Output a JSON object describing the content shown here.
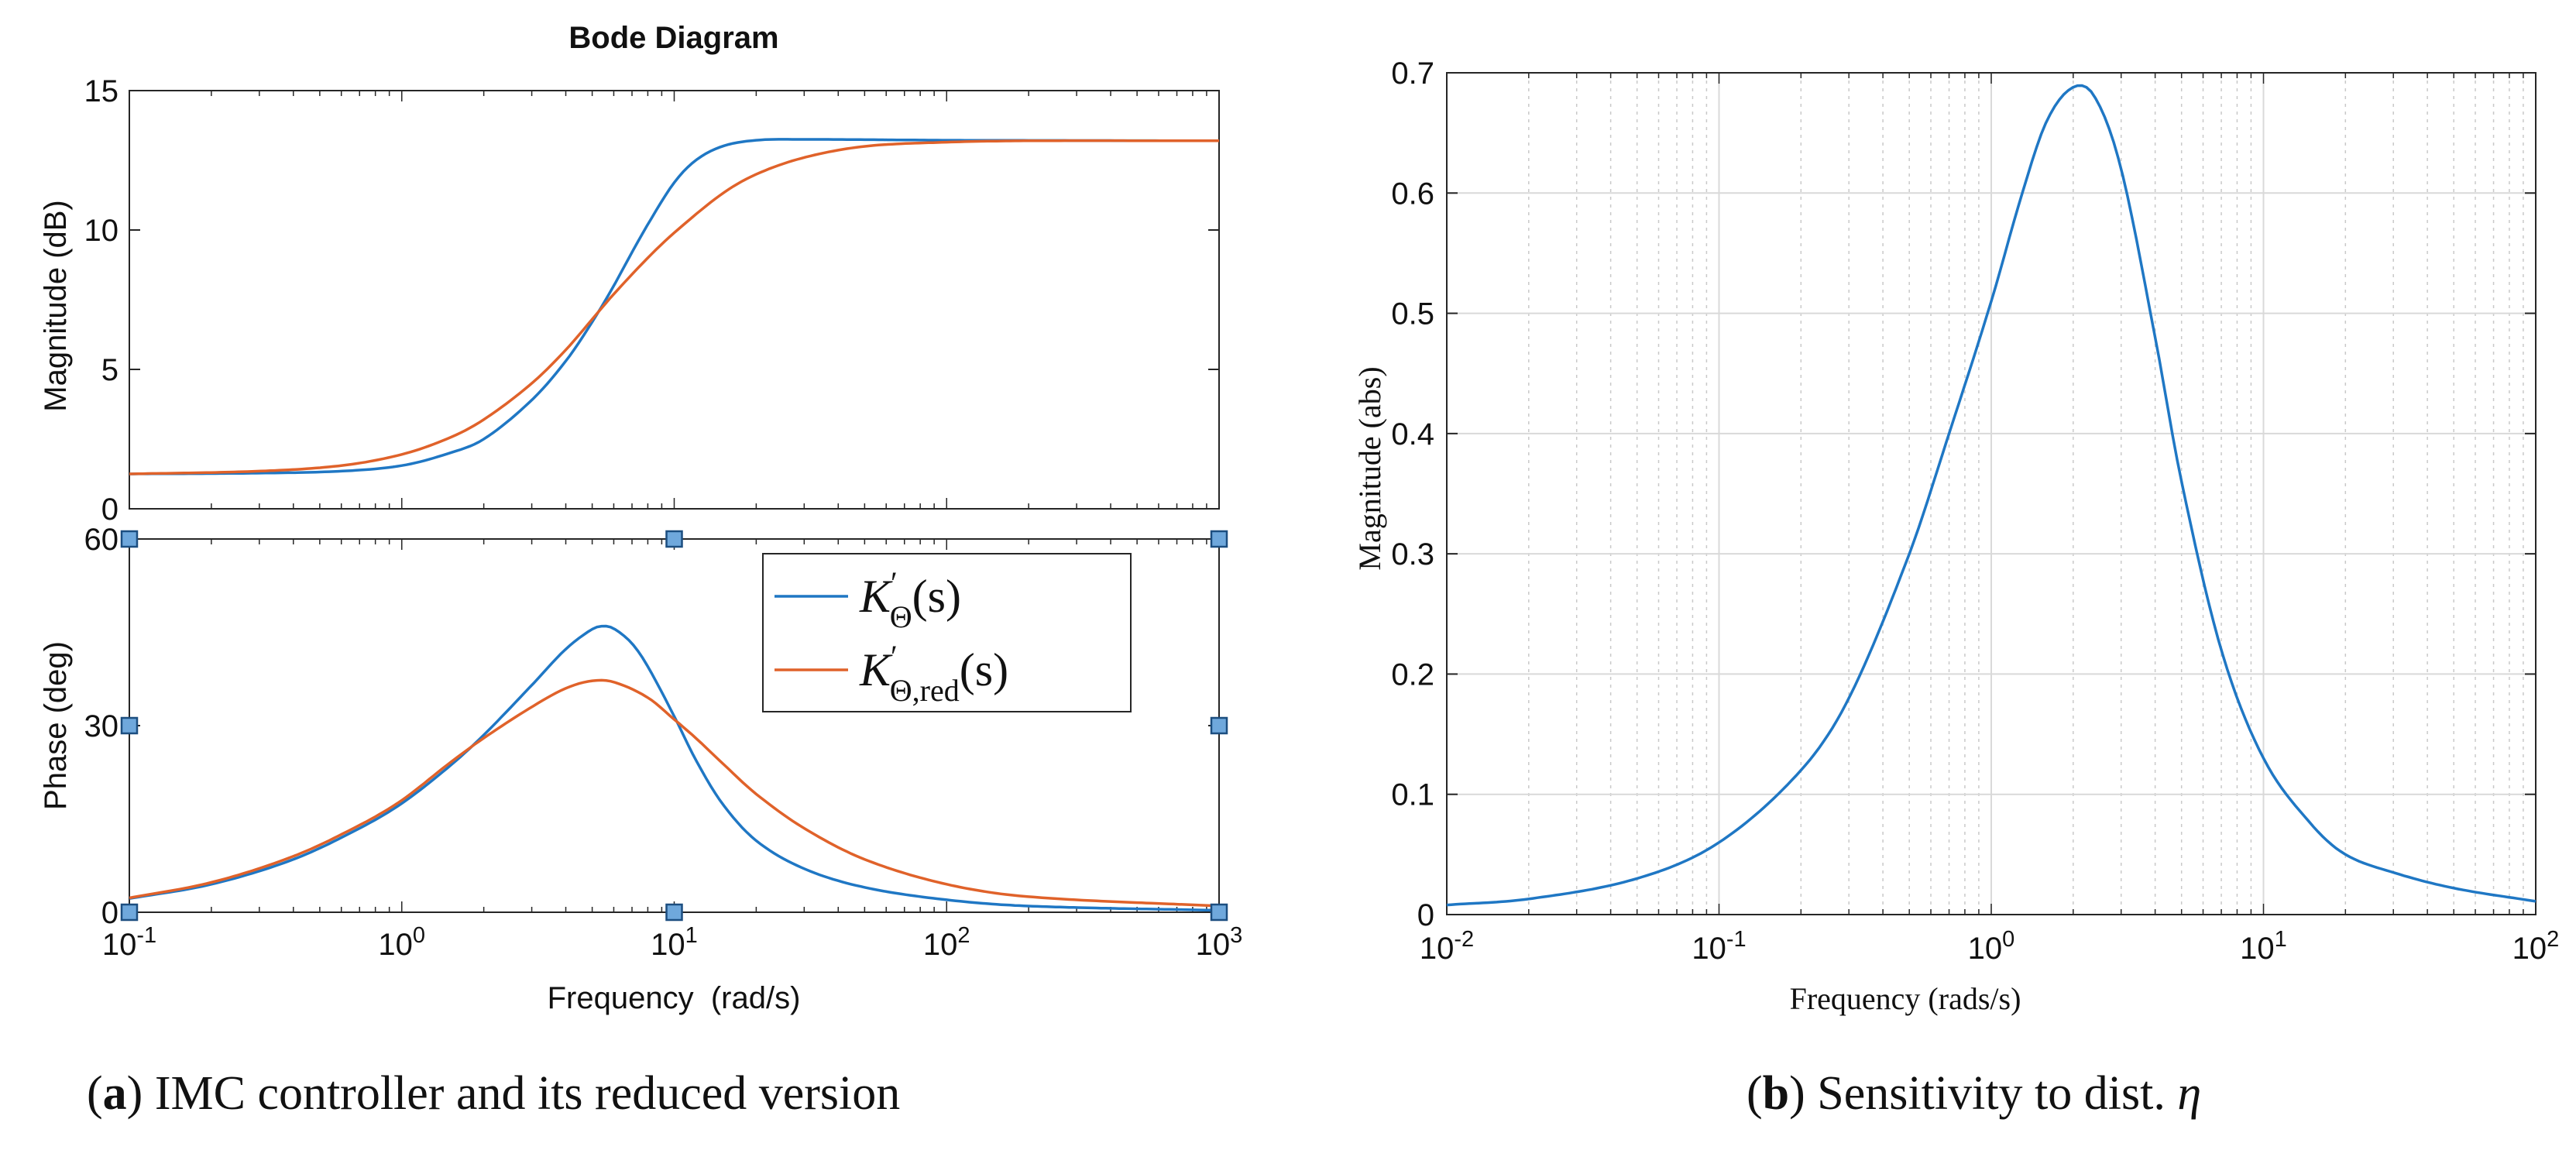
{
  "colors": {
    "blue": "#1f77c4",
    "orange": "#e0622a",
    "axis": "#262626",
    "grid": "#d9d9d9",
    "grid_minor": "#c9c9c9",
    "handle_fill": "#6fa8dc",
    "handle_stroke": "#1c4e80"
  },
  "chart_data": [
    {
      "id": "bode",
      "type": "line",
      "title": "Bode Diagram",
      "xlabel": "Frequency  (rad/s)",
      "xscale": "log",
      "xlim": [
        0.1,
        1000
      ],
      "xticks": [
        0.1,
        1,
        10,
        100,
        1000
      ],
      "xtick_labels": [
        {
          "base": "10",
          "exp": "-1"
        },
        {
          "base": "10",
          "exp": "0"
        },
        {
          "base": "10",
          "exp": "1"
        },
        {
          "base": "10",
          "exp": "2"
        },
        {
          "base": "10",
          "exp": "3"
        }
      ],
      "legend": {
        "position": "top-right of phase panel",
        "entries": [
          {
            "series": "K'_Θ(s)",
            "main": "K",
            "sup": "′",
            "sub": "Θ",
            "arg": "(s)",
            "color": "blue"
          },
          {
            "series": "K'_Θ,red(s)",
            "main": "K",
            "sup": "′",
            "sub": "Θ,red",
            "arg": "(s)",
            "color": "orange"
          }
        ]
      },
      "panels": [
        {
          "id": "magnitude",
          "ylabel": "Magnitude (dB)",
          "ylim": [
            0,
            15
          ],
          "yticks": [
            0,
            5,
            10,
            15
          ],
          "series": [
            {
              "name": "K'_Θ(s)",
              "color": "blue",
              "x": [
                0.1,
                0.3,
                0.6,
                1,
                1.5,
                2,
                3,
                4,
                5,
                6,
                7,
                8,
                10,
                12,
                15,
                20,
                30,
                50,
                100,
                1000
              ],
              "y": [
                1.25,
                1.28,
                1.35,
                1.55,
                2.0,
                2.5,
                3.9,
                5.3,
                6.7,
                8.0,
                9.2,
                10.2,
                11.7,
                12.5,
                13.0,
                13.22,
                13.25,
                13.24,
                13.22,
                13.2
              ]
            },
            {
              "name": "K'_Θ,red(s)",
              "color": "orange",
              "x": [
                0.1,
                0.3,
                0.6,
                1,
                1.5,
                2,
                3,
                4,
                5,
                6,
                8,
                10,
                15,
                20,
                30,
                50,
                100,
                200,
                1000
              ],
              "y": [
                1.25,
                1.35,
                1.55,
                1.95,
                2.55,
                3.2,
                4.5,
                5.7,
                6.8,
                7.7,
                9.0,
                9.9,
                11.3,
                12.0,
                12.6,
                13.0,
                13.15,
                13.2,
                13.2
              ]
            }
          ]
        },
        {
          "id": "phase",
          "ylabel": "Phase (deg)",
          "ylim": [
            0,
            60
          ],
          "yticks": [
            0,
            30,
            60
          ],
          "handles": [
            [
              0.1,
              60
            ],
            [
              10,
              60
            ],
            [
              1000,
              60
            ],
            [
              0.1,
              30
            ],
            [
              1000,
              30
            ],
            [
              0.1,
              0
            ],
            [
              10,
              0
            ],
            [
              1000,
              0
            ]
          ],
          "series": [
            {
              "name": "K'_Θ(s)",
              "color": "blue",
              "x": [
                0.1,
                0.2,
                0.4,
                0.7,
                1,
                1.5,
                2,
                3,
                4,
                5,
                5.5,
                6,
                7,
                8,
                10,
                12,
                15,
                20,
                30,
                50,
                100,
                200,
                1000
              ],
              "y": [
                2.2,
                4.5,
                8.5,
                13.5,
                17.5,
                23.5,
                28.5,
                36.5,
                42.3,
                45.5,
                46,
                45.6,
                43.2,
                39.5,
                31.5,
                24.5,
                17.5,
                11.5,
                7.0,
                4.0,
                2.0,
                1.0,
                0.3
              ]
            },
            {
              "name": "K'_Θ,red(s)",
              "color": "orange",
              "x": [
                0.1,
                0.2,
                0.4,
                0.7,
                1,
                1.5,
                2,
                3,
                4,
                5,
                6,
                8,
                10,
                12,
                15,
                20,
                30,
                50,
                100,
                200,
                1000
              ],
              "y": [
                2.3,
                4.8,
                9.0,
                14.0,
                18.0,
                24.0,
                28.0,
                33.0,
                36.0,
                37.2,
                37.0,
                34.5,
                31.0,
                28.0,
                24.0,
                19.0,
                13.5,
                8.5,
                4.5,
                2.5,
                1.0
              ]
            }
          ]
        }
      ]
    },
    {
      "id": "sensitivity",
      "type": "line",
      "title": "",
      "xlabel": "Frequency (rads/s)",
      "ylabel": "Magnitude (abs)",
      "xscale": "log",
      "xlim": [
        0.01,
        100
      ],
      "ylim": [
        0,
        0.7
      ],
      "grid": true,
      "xticks": [
        0.01,
        0.1,
        1,
        10,
        100
      ],
      "xtick_labels": [
        {
          "base": "10",
          "exp": "-2"
        },
        {
          "base": "10",
          "exp": "-1"
        },
        {
          "base": "10",
          "exp": "0"
        },
        {
          "base": "10",
          "exp": "1"
        },
        {
          "base": "10",
          "exp": "2"
        }
      ],
      "yticks": [
        0,
        0.1,
        0.2,
        0.3,
        0.4,
        0.5,
        0.6,
        0.7
      ],
      "ytick_labels": [
        "0",
        "0.1",
        "0.2",
        "0.3",
        "0.4",
        "0.5",
        "0.6",
        "0.7"
      ],
      "series": [
        {
          "name": "sensitivity",
          "color": "blue",
          "x": [
            0.01,
            0.02,
            0.05,
            0.1,
            0.2,
            0.3,
            0.5,
            0.7,
            1,
            1.3,
            1.6,
            2,
            2.4,
            3,
            4,
            5,
            7,
            10,
            15,
            20,
            30,
            50,
            100
          ],
          "y": [
            0.008,
            0.013,
            0.03,
            0.06,
            0.12,
            0.18,
            0.3,
            0.4,
            0.51,
            0.6,
            0.66,
            0.688,
            0.68,
            0.62,
            0.48,
            0.36,
            0.22,
            0.13,
            0.075,
            0.05,
            0.035,
            0.022,
            0.011
          ]
        }
      ]
    }
  ],
  "captions": {
    "a": {
      "letter": "a",
      "text": " IMC controller and its reduced version"
    },
    "b": {
      "letter": "b",
      "text": " Sensitivity to dist. ",
      "symbol": "η"
    }
  }
}
